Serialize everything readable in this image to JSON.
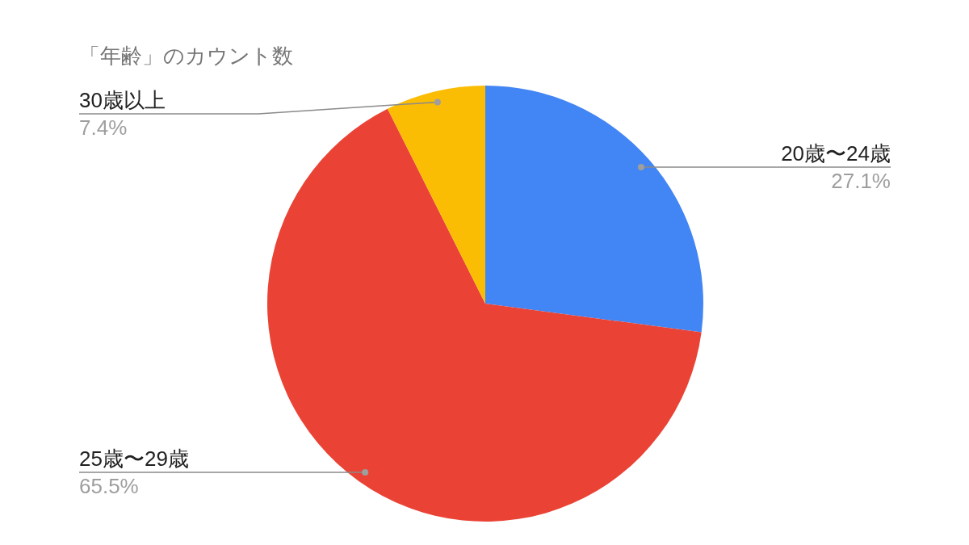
{
  "chart_data": {
    "type": "pie",
    "title": "「年齢」のカウント数",
    "categories": [
      "20歳〜24歳",
      "25歳〜29歳",
      "30歳以上"
    ],
    "values": [
      27.1,
      65.5,
      7.4
    ],
    "colors": [
      "#4285f4",
      "#ea4335",
      "#fbbc04"
    ],
    "value_labels": [
      "27.1%",
      "65.5%",
      "7.4%"
    ]
  }
}
